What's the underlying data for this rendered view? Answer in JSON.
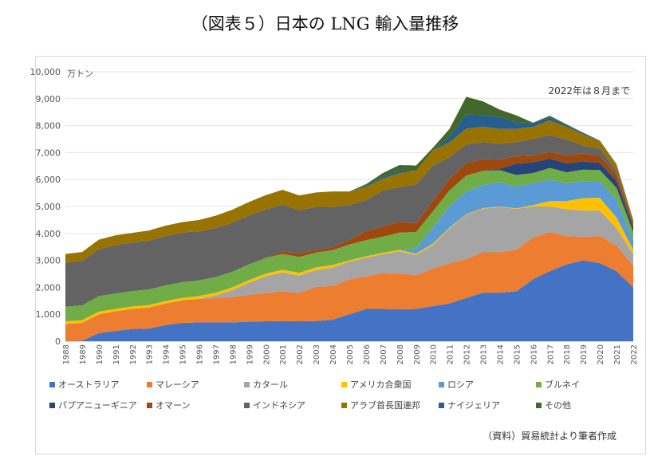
{
  "title": "（図表５）日本の LNG 輸入量推移",
  "source_note": "（資料）貿易統計より筆者作成",
  "chart_data": {
    "type": "area",
    "stacked": true,
    "unit_label": "万トン",
    "annotation": "2022年は８月まで",
    "ylim": [
      0,
      10000
    ],
    "yticks": [
      0,
      1000,
      2000,
      3000,
      4000,
      5000,
      6000,
      7000,
      8000,
      9000,
      10000
    ],
    "ytick_labels": [
      "0",
      "1,000",
      "2,000",
      "3,000",
      "4,000",
      "5,000",
      "6,000",
      "7,000",
      "8,000",
      "9,000",
      "10,000"
    ],
    "grid": true,
    "legend_position": "bottom",
    "categories": [
      "1988",
      "1989",
      "1990",
      "1991",
      "1992",
      "1993",
      "1994",
      "1995",
      "1996",
      "1997",
      "1998",
      "1999",
      "2000",
      "2001",
      "2002",
      "2003",
      "2004",
      "2005",
      "2006",
      "2007",
      "2008",
      "2009",
      "2010",
      "2011",
      "2012",
      "2013",
      "2014",
      "2015",
      "2016",
      "2017",
      "2018",
      "2019",
      "2020",
      "2021",
      "2022"
    ],
    "series": [
      {
        "name": "オーストラリア",
        "color": "#4472c4",
        "values": [
          0,
          20,
          300,
          380,
          450,
          470,
          600,
          680,
          700,
          700,
          700,
          720,
          740,
          750,
          740,
          750,
          800,
          1000,
          1200,
          1200,
          1180,
          1200,
          1300,
          1400,
          1600,
          1800,
          1800,
          1850,
          2300,
          2600,
          2850,
          3000,
          2900,
          2600,
          2000
        ]
      },
      {
        "name": "マレーシア",
        "color": "#ed7d31",
        "values": [
          640,
          660,
          700,
          730,
          750,
          780,
          800,
          840,
          870,
          900,
          950,
          1000,
          1050,
          1100,
          1050,
          1270,
          1250,
          1300,
          1200,
          1330,
          1330,
          1250,
          1400,
          1490,
          1450,
          1500,
          1500,
          1550,
          1550,
          1450,
          1050,
          880,
          1000,
          950,
          800
        ]
      },
      {
        "name": "カタール",
        "color": "#a5a5a5",
        "values": [
          0,
          0,
          0,
          0,
          0,
          0,
          0,
          0,
          10,
          100,
          250,
          450,
          620,
          700,
          650,
          620,
          680,
          650,
          700,
          700,
          830,
          750,
          870,
          1300,
          1640,
          1620,
          1680,
          1510,
          1150,
          950,
          1000,
          970,
          950,
          640,
          430
        ]
      },
      {
        "name": "アメリカ合衆国",
        "color": "#ffc000",
        "values": [
          100,
          100,
          100,
          90,
          90,
          90,
          90,
          90,
          100,
          100,
          100,
          100,
          100,
          100,
          100,
          100,
          100,
          50,
          50,
          50,
          50,
          50,
          50,
          30,
          20,
          20,
          20,
          20,
          50,
          200,
          300,
          460,
          470,
          400,
          170
        ]
      },
      {
        "name": "ロシア",
        "color": "#5b9bd5",
        "values": [
          0,
          0,
          0,
          0,
          0,
          0,
          0,
          0,
          0,
          0,
          0,
          0,
          0,
          0,
          0,
          0,
          0,
          0,
          0,
          0,
          0,
          200,
          600,
          800,
          850,
          860,
          900,
          810,
          820,
          800,
          660,
          630,
          610,
          660,
          350
        ]
      },
      {
        "name": "ブルネイ",
        "color": "#70ad47",
        "values": [
          540,
          550,
          570,
          570,
          570,
          580,
          580,
          580,
          580,
          580,
          580,
          580,
          580,
          590,
          590,
          550,
          550,
          590,
          600,
          600,
          640,
          600,
          600,
          580,
          590,
          520,
          450,
          430,
          370,
          430,
          410,
          430,
          420,
          440,
          300
        ]
      },
      {
        "name": "パプアニューギニア",
        "color": "#264478",
        "values": [
          0,
          0,
          0,
          0,
          0,
          0,
          0,
          0,
          0,
          0,
          0,
          0,
          0,
          0,
          0,
          0,
          0,
          0,
          0,
          0,
          0,
          0,
          0,
          0,
          0,
          0,
          50,
          420,
          400,
          350,
          330,
          300,
          270,
          260,
          180
        ]
      },
      {
        "name": "オマーン",
        "color": "#9e480e",
        "values": [
          0,
          0,
          0,
          0,
          0,
          0,
          0,
          0,
          0,
          0,
          0,
          0,
          0,
          100,
          120,
          90,
          100,
          170,
          330,
          380,
          400,
          330,
          380,
          430,
          460,
          440,
          340,
          280,
          250,
          240,
          300,
          290,
          270,
          230,
          150
        ]
      },
      {
        "name": "インドネシア",
        "color": "#636363",
        "values": [
          1640,
          1650,
          1750,
          1800,
          1800,
          1820,
          1840,
          1850,
          1820,
          1820,
          1820,
          1820,
          1800,
          1730,
          1610,
          1610,
          1500,
          1300,
          1150,
          1330,
          1290,
          1440,
          1320,
          800,
          700,
          630,
          590,
          520,
          630,
          620,
          590,
          300,
          260,
          130,
          60
        ]
      },
      {
        "name": "アラブ首長国連邦",
        "color": "#997300",
        "values": [
          320,
          330,
          350,
          360,
          360,
          370,
          380,
          380,
          420,
          460,
          480,
          500,
          530,
          550,
          550,
          530,
          580,
          500,
          500,
          440,
          520,
          500,
          560,
          550,
          580,
          570,
          550,
          490,
          440,
          550,
          460,
          420,
          270,
          240,
          60
        ]
      },
      {
        "name": "ナイジェリア",
        "color": "#255e91",
        "values": [
          0,
          0,
          0,
          0,
          0,
          0,
          0,
          0,
          0,
          0,
          0,
          0,
          0,
          0,
          0,
          0,
          0,
          0,
          50,
          60,
          100,
          0,
          0,
          200,
          520,
          440,
          440,
          250,
          130,
          120,
          50,
          60,
          10,
          20,
          0
        ]
      },
      {
        "name": "その他",
        "color": "#43682b",
        "values": [
          0,
          0,
          0,
          0,
          0,
          0,
          0,
          0,
          0,
          0,
          0,
          0,
          0,
          0,
          0,
          0,
          0,
          0,
          50,
          150,
          200,
          200,
          100,
          300,
          660,
          500,
          280,
          250,
          20,
          60,
          50,
          0,
          20,
          0,
          0
        ]
      }
    ]
  }
}
